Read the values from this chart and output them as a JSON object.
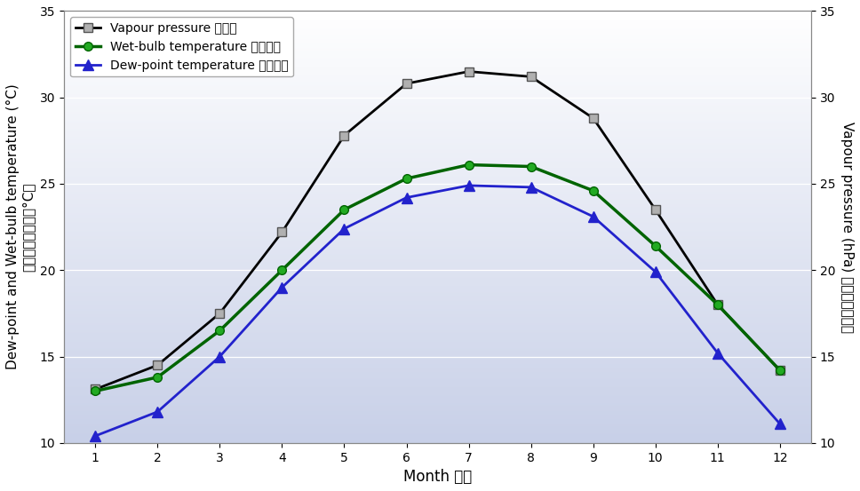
{
  "months": [
    1,
    2,
    3,
    4,
    5,
    6,
    7,
    8,
    9,
    10,
    11,
    12
  ],
  "vapour_pressure": [
    13.1,
    14.5,
    17.5,
    22.2,
    27.8,
    30.8,
    31.5,
    31.2,
    28.8,
    23.5,
    18.0,
    14.2
  ],
  "wetbulb_temp": [
    13.0,
    13.8,
    16.5,
    20.0,
    23.5,
    25.3,
    26.1,
    26.0,
    24.6,
    21.4,
    18.0,
    14.2
  ],
  "dewpoint_temp": [
    10.4,
    11.8,
    15.0,
    19.0,
    22.4,
    24.2,
    24.9,
    24.8,
    23.1,
    19.9,
    15.2,
    11.1
  ],
  "vapour_color": "#000000",
  "wetbulb_color": "#006400",
  "dewpoint_color": "#2222cc",
  "bg_top_color": "#c8d0e8",
  "bg_bottom_color": "#ffffff",
  "ylim_left": [
    10,
    35
  ],
  "ylim_right": [
    10,
    35
  ],
  "yticks": [
    10,
    15,
    20,
    25,
    30,
    35
  ],
  "xlabel": "Month 月份",
  "ylabel_left_en": "Dew-point and Wet-bulb temperature (°C)",
  "ylabel_left_zh": "露點及濕球溫度（°C）",
  "ylabel_right_en": "Vapour pressure (hPa)",
  "ylabel_right_zh": "水氣壓（百帕）",
  "legend_vapour": "Vapour pressure 水氣壓",
  "legend_wetbulb": "Wet-bulb temperature 濕球溫度",
  "legend_dewpoint": "Dew-point temperature 露點溫度",
  "label_fontsize": 11,
  "tick_fontsize": 10,
  "legend_fontsize": 10
}
